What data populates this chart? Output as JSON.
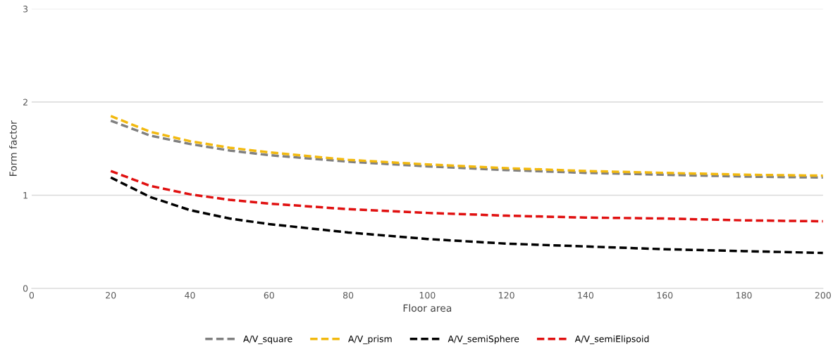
{
  "chart_data": {
    "type": "line",
    "xlabel": "Floor area",
    "ylabel": "Form factor",
    "x": [
      20,
      30,
      40,
      50,
      60,
      80,
      100,
      120,
      140,
      160,
      180,
      200
    ],
    "series": [
      {
        "name": "A/V_square",
        "color": "#808080",
        "values": [
          1.8,
          1.64,
          1.55,
          1.48,
          1.43,
          1.36,
          1.31,
          1.27,
          1.24,
          1.22,
          1.2,
          1.19
        ]
      },
      {
        "name": "A/V_prism",
        "color": "#f2b90f",
        "values": [
          1.85,
          1.68,
          1.58,
          1.51,
          1.46,
          1.38,
          1.33,
          1.29,
          1.26,
          1.24,
          1.22,
          1.21
        ]
      },
      {
        "name": "A/V_semiSphere",
        "color": "#000000",
        "values": [
          1.19,
          0.98,
          0.84,
          0.75,
          0.69,
          0.6,
          0.53,
          0.48,
          0.45,
          0.42,
          0.4,
          0.38
        ]
      },
      {
        "name": "A/V_semiElipsoid",
        "color": "#e01010",
        "values": [
          1.26,
          1.1,
          1.01,
          0.95,
          0.91,
          0.85,
          0.81,
          0.78,
          0.76,
          0.75,
          0.73,
          0.72
        ]
      }
    ],
    "xlim": [
      0,
      200
    ],
    "xticks": [
      0,
      20,
      40,
      60,
      80,
      100,
      120,
      140,
      160,
      180,
      200
    ],
    "ylim": [
      0,
      3
    ],
    "yticks": [
      0,
      1,
      2,
      3
    ],
    "grid": "y",
    "legend": "bottom",
    "marker": "none",
    "line_style": "dashed"
  }
}
